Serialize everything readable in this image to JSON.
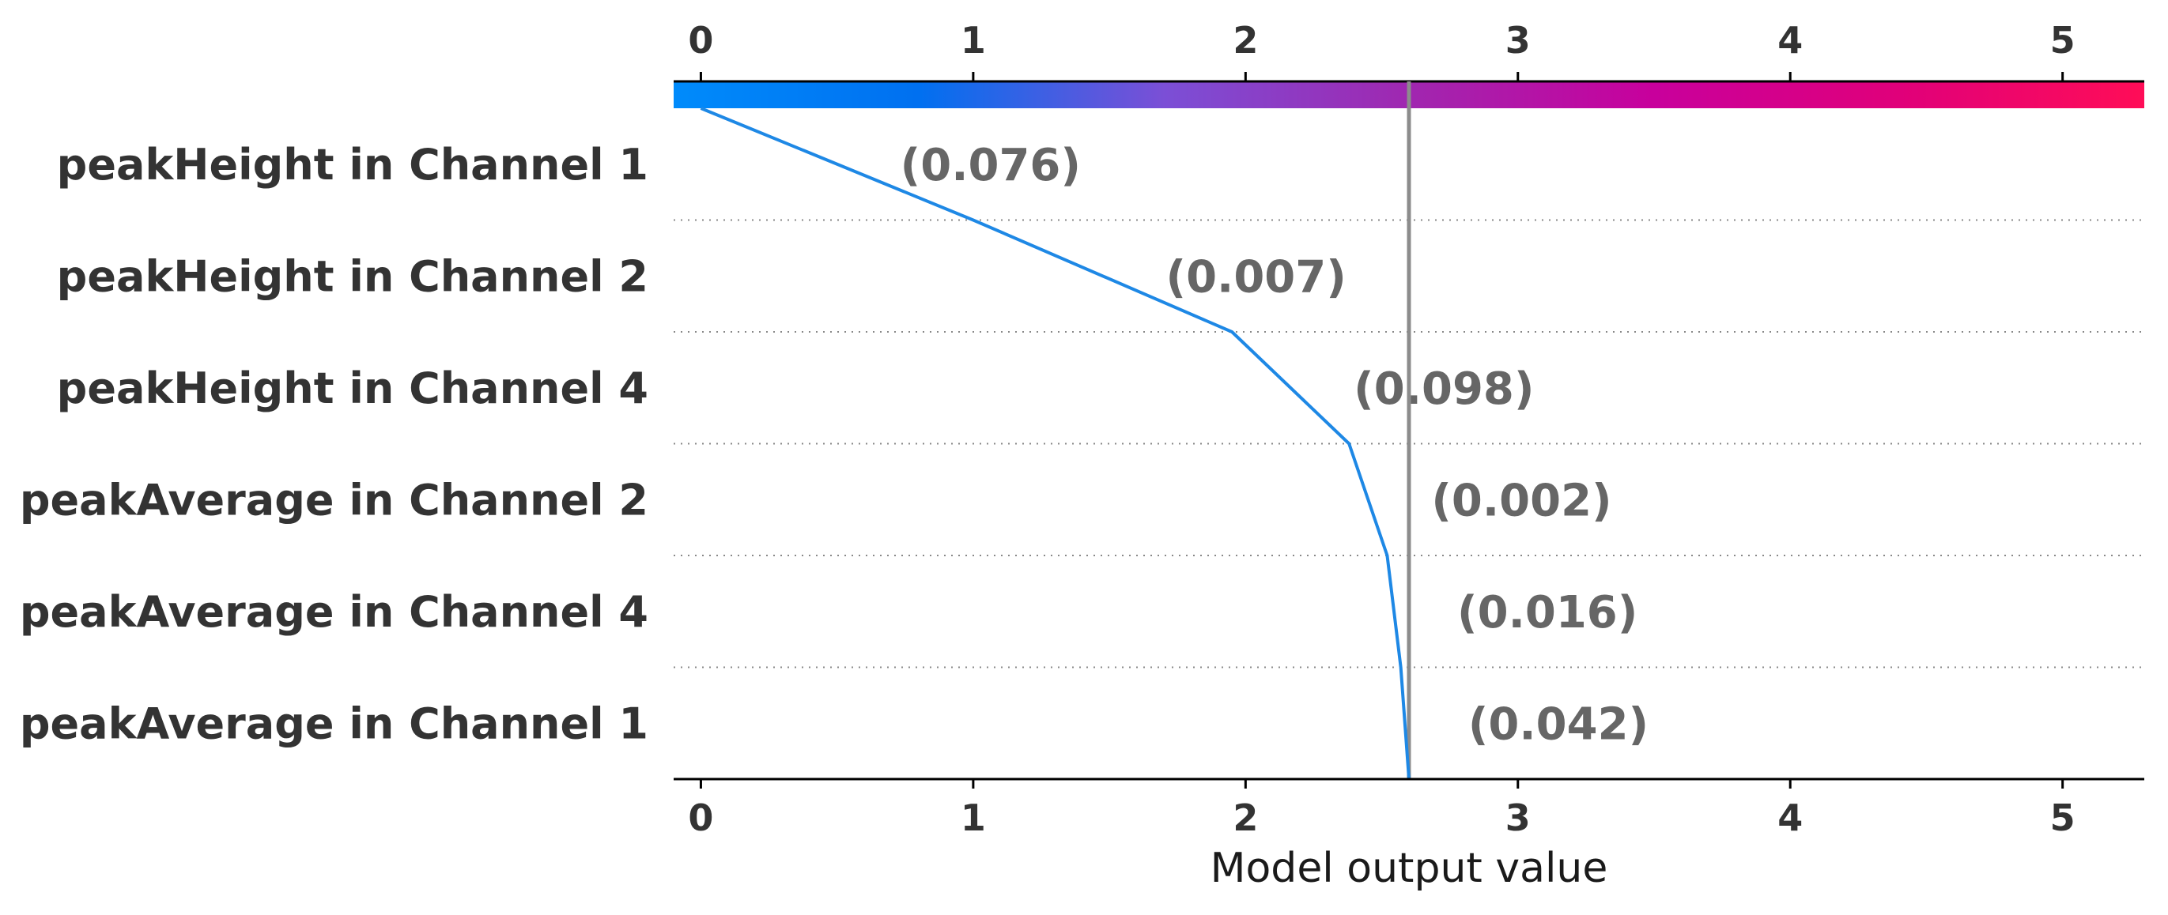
{
  "chart_data": {
    "type": "line",
    "xlabel": "Model output value",
    "xlim": [
      -0.1,
      5.3
    ],
    "xticks": [
      "0",
      "1",
      "2",
      "3",
      "4",
      "5"
    ],
    "base_value": 0,
    "final_value": 2.6,
    "features": [
      "peakHeight in Channel 1",
      "peakHeight in Channel 2",
      "peakHeight in Channel 4",
      "peakAverage in Channel 2",
      "peakAverage in Channel 4",
      "peakAverage in Channel 1"
    ],
    "annotations": [
      "(0.076)",
      "(0.007)",
      "(0.098)",
      "(0.002)",
      "(0.016)",
      "(0.042)"
    ],
    "path_x": [
      0,
      1.0,
      1.95,
      2.38,
      2.52,
      2.57,
      2.6
    ],
    "colorbar": {
      "colors": [
        "#008bfb",
        "#0070f0",
        "#7b4fd6",
        "#a027b0",
        "#c8009c",
        "#e0007a",
        "#ff0d57"
      ]
    },
    "colors": {
      "line": "#1e88e5",
      "final_line": "#8c8c8c",
      "grid": "#888888",
      "axis": "#000000"
    }
  }
}
